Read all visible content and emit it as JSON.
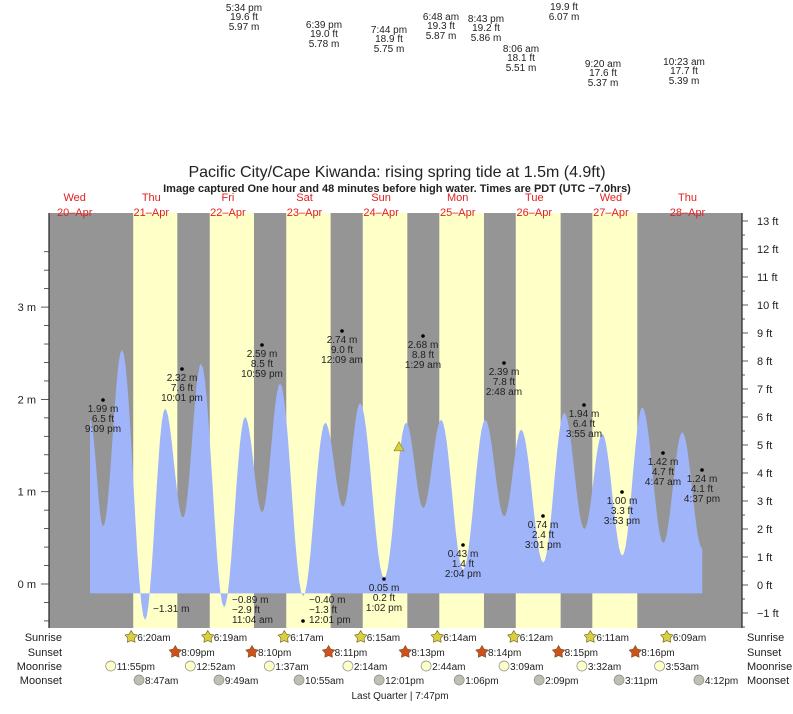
{
  "chart_data": {
    "type": "area",
    "title": "Pacific City/Cape Kiwanda: rising  spring tide at 1.5m (4.9ft)",
    "subtitle": "Image captured One hour and 48 minutes before high water. Times are PDT (UTC −7.0hrs)",
    "days": [
      {
        "dow": "Wed",
        "date": "20–Apr"
      },
      {
        "dow": "Thu",
        "date": "21–Apr"
      },
      {
        "dow": "Fri",
        "date": "22–Apr"
      },
      {
        "dow": "Sat",
        "date": "23–Apr"
      },
      {
        "dow": "Sun",
        "date": "24–Apr"
      },
      {
        "dow": "Mon",
        "date": "25–Apr"
      },
      {
        "dow": "Tue",
        "date": "26–Apr"
      },
      {
        "dow": "Wed",
        "date": "27–Apr"
      },
      {
        "dow": "Thu",
        "date": "28–Apr"
      }
    ],
    "y_left_ticks": [
      "0 m",
      "1 m",
      "2 m",
      "3 m"
    ],
    "y_right_ticks": [
      "−1 ft",
      "0 ft",
      "1 ft",
      "2 ft",
      "3 ft",
      "4 ft",
      "5 ft",
      "6 ft",
      "7 ft",
      "8 ft",
      "9 ft",
      "10 ft",
      "11 ft",
      "12 ft",
      "13 ft"
    ],
    "ylim_ft": [
      -1.5,
      13.3
    ],
    "baseline_ft": -0.3,
    "current_marker_ft": 4.9,
    "curve": [
      {
        "t": "20-Apr 16:48",
        "ft": 5.9
      },
      {
        "t": "20-Apr 20:54",
        "ft": 2.1
      },
      {
        "t": "21-Apr 02:49",
        "ft": 8.4
      },
      {
        "t": "21-Apr 10:02",
        "ft": -1.25
      },
      {
        "t": "21-Apr 16:18",
        "ft": 6.3
      },
      {
        "t": "21-Apr 21:56",
        "ft": 2.4
      },
      {
        "t": "22-Apr 03:35",
        "ft": 7.9
      },
      {
        "t": "22-Apr 10:48",
        "ft": -0.8
      },
      {
        "t": "22-Apr 17:23",
        "ft": 6.0
      },
      {
        "t": "22-Apr 22:43",
        "ft": 2.6
      },
      {
        "t": "23-Apr 04:21",
        "ft": 7.2
      },
      {
        "t": "23-Apr 11:34",
        "ft": -0.4
      },
      {
        "t": "23-Apr 18:30",
        "ft": 5.8
      },
      {
        "t": "24-Apr 00:06",
        "ft": 2.8
      },
      {
        "t": "24-Apr 05:26",
        "ft": 6.5
      },
      {
        "t": "24-Apr 12:57",
        "ft": 0.25
      },
      {
        "t": "24-Apr 19:51",
        "ft": 5.8
      },
      {
        "t": "25-Apr 01:11",
        "ft": 2.75
      },
      {
        "t": "25-Apr 06:49",
        "ft": 5.9
      },
      {
        "t": "25-Apr 13:43",
        "ft": 0.55
      },
      {
        "t": "25-Apr 20:37",
        "ft": 5.9
      },
      {
        "t": "26-Apr 02:34",
        "ft": 2.45
      },
      {
        "t": "26-Apr 07:54",
        "ft": 5.55
      },
      {
        "t": "26-Apr 14:48",
        "ft": 0.8
      },
      {
        "t": "26-Apr 21:23",
        "ft": 6.15
      },
      {
        "t": "27-Apr 03:41",
        "ft": 2.0
      },
      {
        "t": "27-Apr 09:18",
        "ft": 5.4
      },
      {
        "t": "27-Apr 15:36",
        "ft": 1.05
      },
      {
        "t": "27-Apr 21:50",
        "ft": 6.35
      },
      {
        "t": "28-Apr 04:25",
        "ft": 1.5
      },
      {
        "t": "28-Apr 10:22",
        "ft": 5.45
      },
      {
        "t": "28-Apr 16:37",
        "ft": 1.3
      }
    ],
    "colors": {
      "water": "#a0b4fa",
      "day": "#ffffc8",
      "night": "#959595",
      "day_label": "#e02020",
      "sunrise": "#d8d040",
      "sunset": "#d05020",
      "moonrise": "#ffffc8",
      "moonset": "#c0c0b0"
    },
    "extremes_in_plot": [
      {
        "m": "1.99 m",
        "ft": "6.5 ft",
        "time": "9:09 pm"
      },
      {
        "m": "2.32 m",
        "ft": "7.6 ft",
        "time": "10:01 pm"
      },
      {
        "m": "2.59 m",
        "ft": "8.5 ft",
        "time": "10:59 pm"
      },
      {
        "m": "2.74 m",
        "ft": "9.0 ft",
        "time": "12:09 am"
      },
      {
        "m": "2.68 m",
        "ft": "8.8 ft",
        "time": "1:29 am"
      },
      {
        "m": "2.39 m",
        "ft": "7.8 ft",
        "time": "2:48 am"
      },
      {
        "m": "1.94 m",
        "ft": "6.4 ft",
        "time": "3:55 am"
      },
      {
        "m": "1.42 m",
        "ft": "4.7 ft",
        "time": "4:47 am"
      },
      {
        "m": "1.24 m",
        "ft": "4.1 ft",
        "time": "4:37 pm"
      },
      {
        "m": "1.00 m",
        "ft": "3.3 ft",
        "time": "3:53 pm"
      },
      {
        "m": "0.74 m",
        "ft": "2.4 ft",
        "time": "3:01 pm"
      },
      {
        "m": "0.43 m",
        "ft": "1.4 ft",
        "time": "2:04 pm"
      },
      {
        "m": "0.05 m",
        "ft": "0.2 ft",
        "time": "1:02 pm"
      },
      {
        "m": "−0.40 m",
        "ft": "−1.3 ft",
        "time": "12:01 pm"
      },
      {
        "m": "−0.89 m",
        "ft": "−2.9 ft",
        "time": "11:04 am"
      },
      {
        "m": "−1.31 m",
        "ft": "",
        "time": ""
      }
    ],
    "extremes_off_scale": [
      {
        "time": "5:34 pm",
        "ft": "19.6 ft",
        "m": "5.97 m"
      },
      {
        "time": "6:39 pm",
        "ft": "19.0 ft",
        "m": "5.78 m"
      },
      {
        "time": "7:44 pm",
        "ft": "18.9 ft",
        "m": "5.75 m"
      },
      {
        "time": "6:48 am",
        "ft": "19.3 ft",
        "m": "5.87 m"
      },
      {
        "time": "8:43 pm",
        "ft": "19.2 ft",
        "m": "5.86 m"
      },
      {
        "time": "",
        "ft": "19.9 ft",
        "m": "6.07 m"
      },
      {
        "time": "8:06 am",
        "ft": "18.1 ft",
        "m": "5.51 m"
      },
      {
        "time": "9:20 am",
        "ft": "17.6 ft",
        "m": "5.37 m"
      },
      {
        "time": "10:23 am",
        "ft": "17.7 ft",
        "m": "5.39 m"
      }
    ],
    "rows": {
      "sunrise": {
        "label": "Sunrise",
        "times": [
          "6:20am",
          "6:19am",
          "6:17am",
          "6:15am",
          "6:14am",
          "6:12am",
          "6:11am",
          "6:09am"
        ]
      },
      "sunset": {
        "label": "Sunset",
        "times": [
          "8:09pm",
          "8:10pm",
          "8:11pm",
          "8:13pm",
          "8:14pm",
          "8:15pm",
          "8:16pm"
        ]
      },
      "moonrise": {
        "label": "Moonrise",
        "times": [
          "11:55pm",
          "12:52am",
          "1:37am",
          "2:14am",
          "2:44am",
          "3:09am",
          "3:32am",
          "3:53am"
        ]
      },
      "moonset": {
        "label": "Moonset",
        "times": [
          "8:47am",
          "9:49am",
          "10:55am",
          "12:01pm",
          "1:06pm",
          "2:09pm",
          "3:11pm",
          "4:12pm"
        ]
      }
    },
    "moon_phase": "Last Quarter | 7:47pm"
  }
}
